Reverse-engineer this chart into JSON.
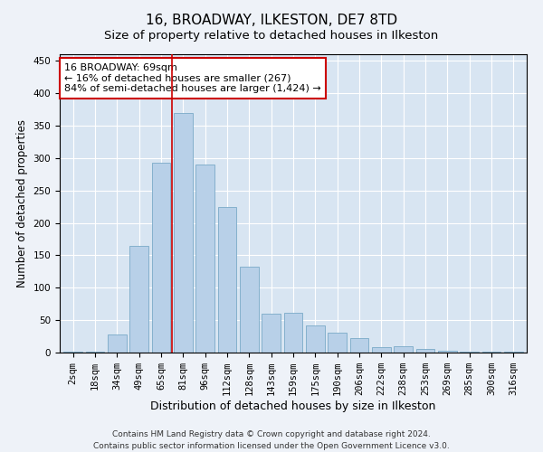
{
  "title1": "16, BROADWAY, ILKESTON, DE7 8TD",
  "title2": "Size of property relative to detached houses in Ilkeston",
  "xlabel": "Distribution of detached houses by size in Ilkeston",
  "ylabel": "Number of detached properties",
  "categories": [
    "2sqm",
    "18sqm",
    "34sqm",
    "49sqm",
    "65sqm",
    "81sqm",
    "96sqm",
    "112sqm",
    "128sqm",
    "143sqm",
    "159sqm",
    "175sqm",
    "190sqm",
    "206sqm",
    "222sqm",
    "238sqm",
    "253sqm",
    "269sqm",
    "285sqm",
    "300sqm",
    "316sqm"
  ],
  "values": [
    2,
    2,
    28,
    165,
    293,
    370,
    290,
    225,
    133,
    60,
    62,
    42,
    30,
    22,
    8,
    10,
    5,
    3,
    2,
    1,
    1
  ],
  "bar_color": "#b8d0e8",
  "bar_edge_color": "#7aaac8",
  "vline_x": 4.5,
  "vline_color": "#cc0000",
  "annotation_text": "16 BROADWAY: 69sqm\n← 16% of detached houses are smaller (267)\n84% of semi-detached houses are larger (1,424) →",
  "annotation_box_color": "white",
  "annotation_box_edge_color": "#cc0000",
  "ylim": [
    0,
    460
  ],
  "yticks": [
    0,
    50,
    100,
    150,
    200,
    250,
    300,
    350,
    400,
    450
  ],
  "footnote1": "Contains HM Land Registry data © Crown copyright and database right 2024.",
  "footnote2": "Contains public sector information licensed under the Open Government Licence v3.0.",
  "bg_color": "#eef2f8",
  "plot_bg_color": "#d8e5f2",
  "grid_color": "white",
  "title1_fontsize": 11,
  "title2_fontsize": 9.5,
  "xlabel_fontsize": 9,
  "ylabel_fontsize": 8.5,
  "tick_fontsize": 7.5,
  "annotation_fontsize": 8,
  "footnote_fontsize": 6.5
}
